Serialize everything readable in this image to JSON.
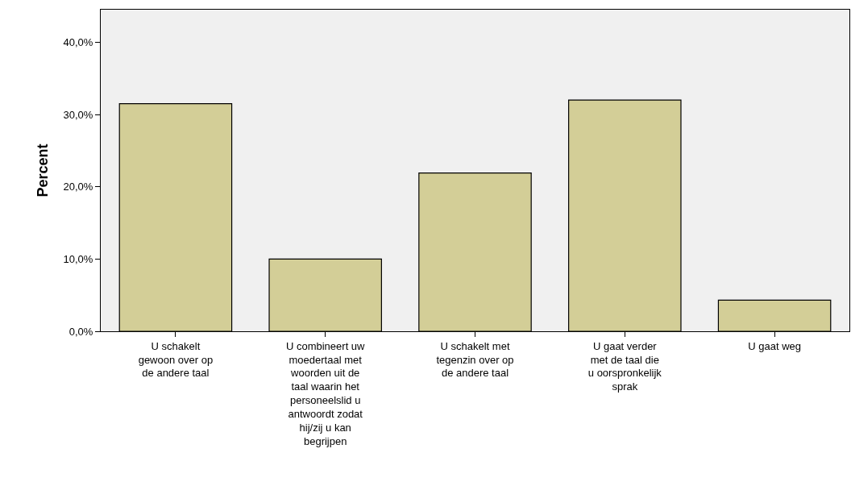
{
  "chart_data": {
    "type": "bar",
    "ylabel": "Percent",
    "categories": [
      "U schakelt gewoon over op de andere taal",
      "U combineert uw moedertaal met woorden uit de taal waarin het personeelslid u antwoordt zodat hij/zij u kan begrijpen",
      "U schakelt met tegenzin over op de andere taal",
      "U gaat verder met de taal die u oorspronkelijk sprak",
      "U gaat weg"
    ],
    "values": [
      31.5,
      10.0,
      21.9,
      32.0,
      4.3
    ],
    "color": "#d3ce97",
    "ylim": [
      0,
      44.5
    ],
    "yticks": [
      {
        "value": 0,
        "label": "0,0%"
      },
      {
        "value": 10,
        "label": "10,0%"
      },
      {
        "value": 20,
        "label": "20,0%"
      },
      {
        "value": 30,
        "label": "30,0%"
      },
      {
        "value": 40,
        "label": "40,0%"
      }
    ],
    "grid": false
  }
}
